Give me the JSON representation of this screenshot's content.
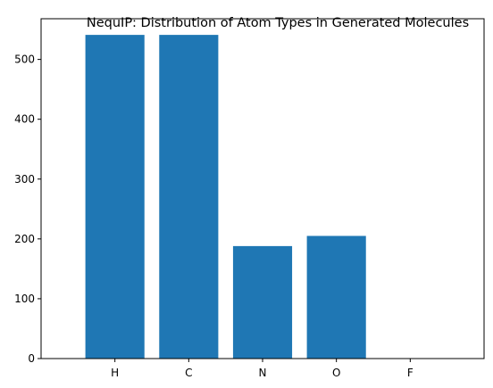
{
  "chart_data": {
    "type": "bar",
    "title": "NequIP: Distribution of Atom Types in Generated Molecules",
    "xlabel": "",
    "ylabel": "",
    "categories": [
      "H",
      "C",
      "N",
      "O",
      "F"
    ],
    "values": [
      541,
      541,
      188,
      205,
      0
    ],
    "ylim": [
      0,
      568
    ],
    "yticks": [
      0,
      100,
      200,
      300,
      400,
      500
    ],
    "grid": false,
    "legend": "none",
    "bar_color": "#1f77b4"
  }
}
